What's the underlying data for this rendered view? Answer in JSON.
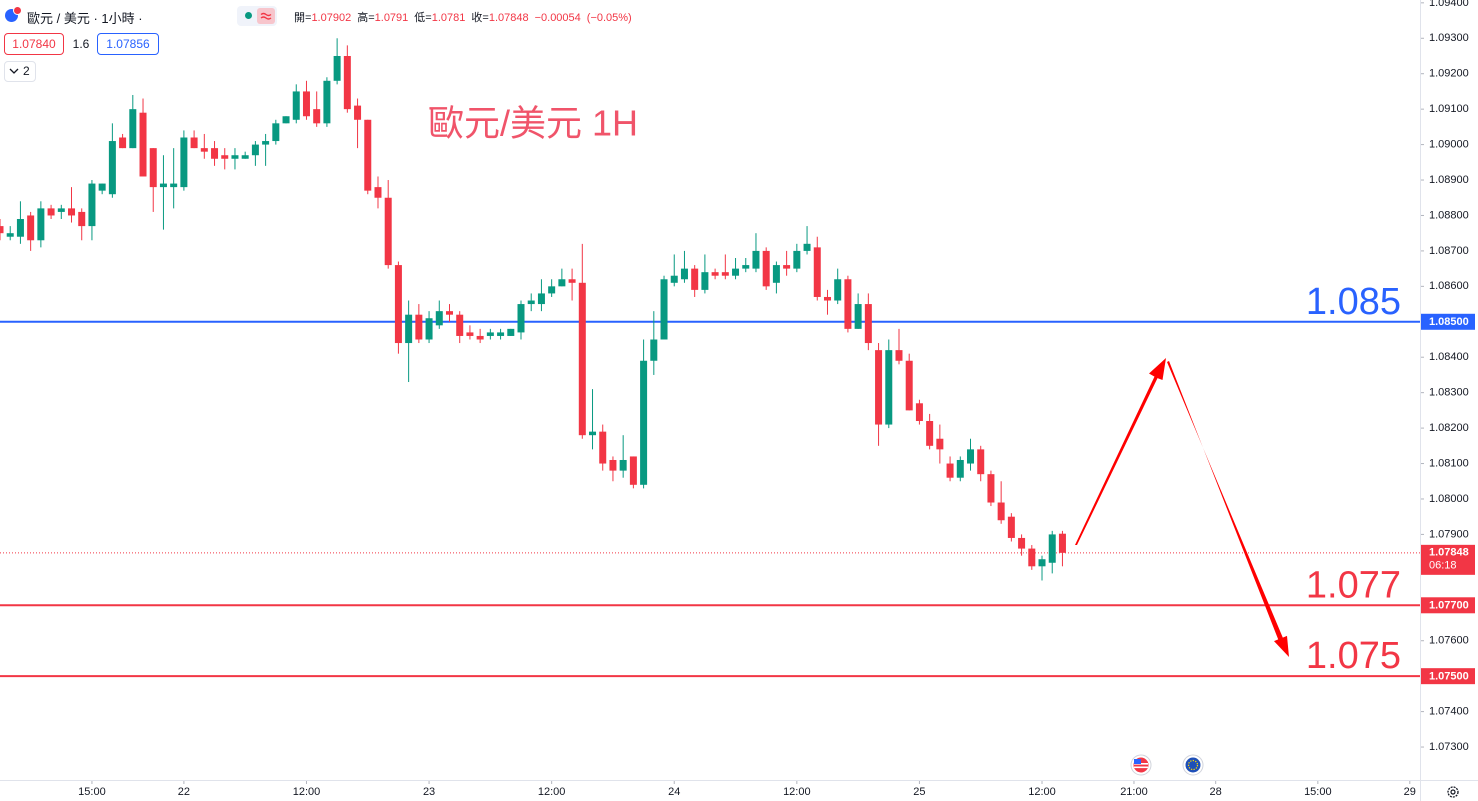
{
  "chart_data": {
    "type": "candlestick",
    "symbol": "歐元 / 美元 · 1小時 ·",
    "ohlc_labels": [
      "開=",
      "高=",
      "低=",
      "收="
    ],
    "change": "−0.00054",
    "change_pct": "(−0.05%)",
    "sell_price": "1.07840",
    "spread": "1.6",
    "buy_price": "1.07856",
    "indicator_count": "2",
    "watermark": "歐元/美元 1H",
    "countdown": "06:18",
    "up_color": "#089981",
    "down_color": "#f23645",
    "grid": false,
    "xlim": [
      0,
      139
    ],
    "ylim": [
      1.07207,
      1.09408
    ],
    "xticks": [
      {
        "value": 9,
        "label": "15:00"
      },
      {
        "value": 18,
        "label": "22"
      },
      {
        "value": 30,
        "label": "12:00"
      },
      {
        "value": 42,
        "label": "23"
      },
      {
        "value": 54,
        "label": "12:00"
      },
      {
        "value": 66,
        "label": "24"
      },
      {
        "value": 78,
        "label": "12:00"
      },
      {
        "value": 90,
        "label": "25"
      },
      {
        "value": 102,
        "label": "12:00"
      },
      {
        "value": 111,
        "label": "21:00"
      },
      {
        "value": 119,
        "label": "28"
      },
      {
        "value": 129,
        "label": "15:00"
      },
      {
        "value": 138,
        "label": "29"
      }
    ],
    "yticks": [
      {
        "value": 1.094,
        "label": "1.09400"
      },
      {
        "value": 1.093,
        "label": "1.09300"
      },
      {
        "value": 1.092,
        "label": "1.09200"
      },
      {
        "value": 1.091,
        "label": "1.09100"
      },
      {
        "value": 1.09,
        "label": "1.09000"
      },
      {
        "value": 1.089,
        "label": "1.08900"
      },
      {
        "value": 1.088,
        "label": "1.08800"
      },
      {
        "value": 1.087,
        "label": "1.08700"
      },
      {
        "value": 1.086,
        "label": "1.08600"
      },
      {
        "value": 1.084,
        "label": "1.08400"
      },
      {
        "value": 1.083,
        "label": "1.08300"
      },
      {
        "value": 1.082,
        "label": "1.08200"
      },
      {
        "value": 1.081,
        "label": "1.08100"
      },
      {
        "value": 1.08,
        "label": "1.08000"
      },
      {
        "value": 1.079,
        "label": "1.07900"
      },
      {
        "value": 1.076,
        "label": "1.07600"
      },
      {
        "value": 1.074,
        "label": "1.07400"
      },
      {
        "value": 1.073,
        "label": "1.07300"
      }
    ],
    "hlines": [
      {
        "value": 1.085,
        "color": "#2962ff",
        "badge": "1.08500"
      },
      {
        "value": 1.077,
        "color": "#f23645",
        "badge": "1.07700"
      },
      {
        "value": 1.075,
        "color": "#f23645",
        "badge": "1.07500"
      }
    ],
    "open": [
      1.0877,
      1.0874,
      1.0874,
      1.088,
      1.0873,
      1.0882,
      1.0881,
      1.0882,
      1.0881,
      1.0877,
      1.0887,
      1.0886,
      1.0902,
      1.0899,
      1.0909,
      1.0899,
      1.0888,
      1.0888,
      1.0888,
      1.0902,
      1.0899,
      1.0899,
      1.0897,
      1.0896,
      1.0896,
      1.0897,
      1.09,
      1.0901,
      1.0906,
      1.0907,
      1.0915,
      1.091,
      1.0906,
      1.0918,
      1.0925,
      1.0911,
      1.0907,
      1.0888,
      1.0885,
      1.0866,
      1.0844,
      1.0852,
      1.0845,
      1.0849,
      1.0853,
      1.0852,
      1.0847,
      1.0846,
      1.0846,
      1.0846,
      1.0846,
      1.0847,
      1.0855,
      1.0855,
      1.0858,
      1.086,
      1.0862,
      1.0861,
      1.0818,
      1.0819,
      1.0811,
      1.0808,
      1.0812,
      1.0804,
      1.0839,
      1.0845,
      1.0861,
      1.0862,
      1.0865,
      1.0859,
      1.0864,
      1.0864,
      1.0863,
      1.0865,
      1.0865,
      1.087,
      1.0861,
      1.0866,
      1.0865,
      1.087,
      1.0871,
      1.0857,
      1.0856,
      1.0862,
      1.0848,
      1.0855,
      1.0842,
      1.0821,
      1.0842,
      1.0839,
      1.0827,
      1.0822,
      1.0817,
      1.081,
      1.0806,
      1.081,
      1.0814,
      1.0807,
      1.0799,
      1.0795,
      1.0789,
      1.0786,
      1.0781,
      1.0782,
      1.07902
    ],
    "high": [
      1.0879,
      1.0877,
      1.0884,
      1.0881,
      1.0884,
      1.0883,
      1.0883,
      1.0888,
      1.0882,
      1.089,
      1.0889,
      1.0906,
      1.0903,
      1.0914,
      1.0913,
      1.0899,
      1.0897,
      1.0899,
      1.0904,
      1.0904,
      1.0903,
      1.0901,
      1.0899,
      1.0899,
      1.0898,
      1.0901,
      1.0903,
      1.0907,
      1.0908,
      1.0917,
      1.0918,
      1.0915,
      1.0919,
      1.093,
      1.0928,
      1.0913,
      1.0907,
      1.0891,
      1.089,
      1.0867,
      1.0856,
      1.0855,
      1.0853,
      1.0856,
      1.0855,
      1.0853,
      1.0849,
      1.0848,
      1.0848,
      1.0848,
      1.0848,
      1.0856,
      1.0858,
      1.0862,
      1.0862,
      1.0865,
      1.0865,
      1.0872,
      1.0831,
      1.0821,
      1.0812,
      1.0818,
      1.0812,
      1.0845,
      1.0853,
      1.0863,
      1.0869,
      1.087,
      1.0866,
      1.0869,
      1.0865,
      1.0869,
      1.0868,
      1.0868,
      1.0875,
      1.0871,
      1.0867,
      1.087,
      1.0872,
      1.0877,
      1.0874,
      1.0859,
      1.0865,
      1.0863,
      1.0858,
      1.0858,
      1.0844,
      1.0845,
      1.0848,
      1.0841,
      1.0828,
      1.0824,
      1.0821,
      1.0812,
      1.0812,
      1.0817,
      1.0815,
      1.0808,
      1.0805,
      1.0796,
      1.079,
      1.0787,
      1.0784,
      1.0791,
      1.0791
    ],
    "low": [
      1.0873,
      1.0873,
      1.0872,
      1.087,
      1.0871,
      1.0879,
      1.0879,
      1.0878,
      1.0873,
      1.0873,
      1.0886,
      1.0885,
      1.0899,
      1.0899,
      1.0891,
      1.0881,
      1.0876,
      1.0882,
      1.0887,
      1.0899,
      1.0896,
      1.0894,
      1.0893,
      1.0893,
      1.0896,
      1.0894,
      1.0894,
      1.09,
      1.0906,
      1.0906,
      1.0907,
      1.0905,
      1.0905,
      1.0917,
      1.0909,
      1.0899,
      1.0886,
      1.0882,
      1.0865,
      1.0841,
      1.0833,
      1.0844,
      1.0844,
      1.0848,
      1.085,
      1.0844,
      1.0845,
      1.0844,
      1.0845,
      1.0845,
      1.0846,
      1.0845,
      1.0853,
      1.0853,
      1.0857,
      1.086,
      1.0856,
      1.0817,
      1.0814,
      1.0808,
      1.0805,
      1.0806,
      1.0803,
      1.0803,
      1.0835,
      1.0845,
      1.086,
      1.0861,
      1.0857,
      1.0858,
      1.0862,
      1.0862,
      1.0862,
      1.0864,
      1.0864,
      1.0859,
      1.0858,
      1.0863,
      1.0864,
      1.0869,
      1.0856,
      1.0852,
      1.0855,
      1.0847,
      1.0848,
      1.0842,
      1.0815,
      1.082,
      1.0838,
      1.0825,
      1.0821,
      1.0814,
      1.081,
      1.0805,
      1.0805,
      1.0808,
      1.0805,
      1.0798,
      1.0793,
      1.0788,
      1.0784,
      1.078,
      1.0777,
      1.0779,
      1.0781
    ],
    "close": [
      1.0875,
      1.0875,
      1.0879,
      1.0873,
      1.0882,
      1.088,
      1.0882,
      1.088,
      1.0877,
      1.0889,
      1.0889,
      1.0901,
      1.0899,
      1.091,
      1.0891,
      1.0888,
      1.0889,
      1.0889,
      1.0902,
      1.0899,
      1.0898,
      1.0896,
      1.0896,
      1.0897,
      1.0897,
      1.09,
      1.0901,
      1.0906,
      1.0908,
      1.0915,
      1.0908,
      1.0906,
      1.0918,
      1.0925,
      1.091,
      1.0907,
      1.0887,
      1.0885,
      1.0866,
      1.0844,
      1.0852,
      1.0845,
      1.0851,
      1.0853,
      1.0852,
      1.0846,
      1.0846,
      1.0845,
      1.0847,
      1.0847,
      1.0848,
      1.0855,
      1.0856,
      1.0858,
      1.086,
      1.0862,
      1.0861,
      1.0818,
      1.0819,
      1.081,
      1.0808,
      1.0811,
      1.0804,
      1.0839,
      1.0845,
      1.0862,
      1.0863,
      1.0865,
      1.0859,
      1.0864,
      1.0863,
      1.0863,
      1.0865,
      1.0866,
      1.087,
      1.086,
      1.0866,
      1.0865,
      1.087,
      1.0872,
      1.0857,
      1.0856,
      1.0862,
      1.0848,
      1.0855,
      1.0844,
      1.0821,
      1.0842,
      1.0839,
      1.0825,
      1.0822,
      1.0815,
      1.0814,
      1.0806,
      1.0811,
      1.0814,
      1.0807,
      1.0799,
      1.0794,
      1.0789,
      1.0786,
      1.0781,
      1.0783,
      1.079,
      1.07848
    ]
  }
}
